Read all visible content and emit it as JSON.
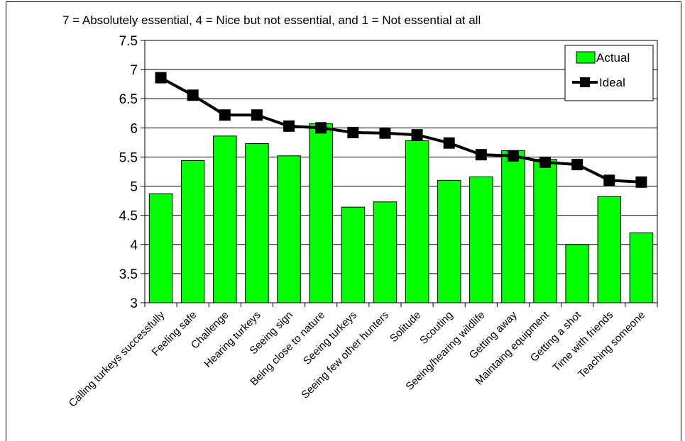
{
  "chart_data": {
    "type": "bar",
    "subtitle": "7 = Absolutely essential, 4 = Nice but not essential, and 1 = Not essential at all",
    "categories": [
      "Calling turkeys successfully",
      "Feeling safe",
      "Challenge",
      "Hearing turkeys",
      "Seeing sign",
      "Being close to nature",
      "Seeing turkeys",
      "Seeing few other hunters",
      "Solitude",
      "Scouting",
      "Seeing/hearing wildlife",
      "Getting away",
      "Maintaing equipment",
      "Getting a shot",
      "Time with friends",
      "Teaching someone"
    ],
    "series": [
      {
        "name": "Actual",
        "type": "bar",
        "color": "#00ff00",
        "values": [
          4.87,
          5.44,
          5.86,
          5.73,
          5.52,
          6.07,
          4.64,
          4.73,
          5.78,
          5.1,
          5.16,
          5.61,
          5.46,
          4.0,
          4.82,
          4.2
        ]
      },
      {
        "name": "Ideal",
        "type": "line",
        "color": "#000000",
        "values": [
          6.86,
          6.56,
          6.22,
          6.22,
          6.03,
          6.0,
          5.92,
          5.91,
          5.88,
          5.74,
          5.54,
          5.52,
          5.41,
          5.37,
          5.1,
          5.07
        ]
      }
    ],
    "yticks": [
      "3",
      "3.5",
      "4",
      "4.5",
      "5",
      "5.5",
      "6",
      "6.5",
      "7",
      "7.5"
    ],
    "ylim": [
      3,
      7.5
    ],
    "grid": true,
    "legend_position": "top-right"
  }
}
